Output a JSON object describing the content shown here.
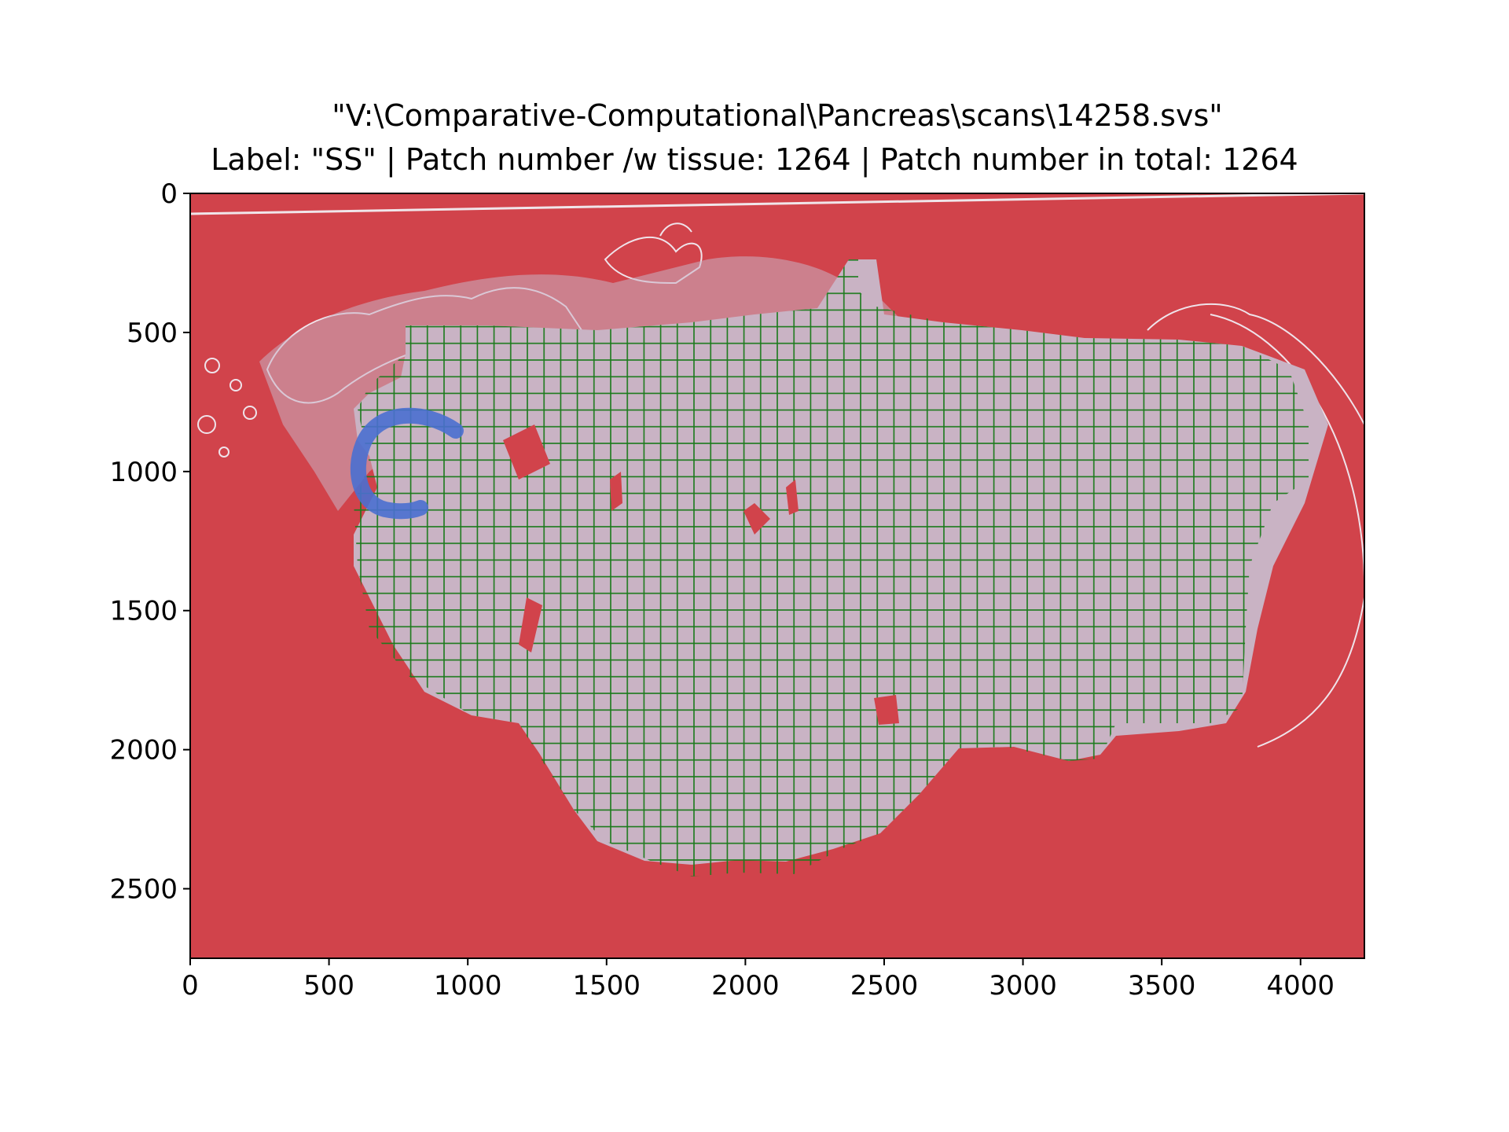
{
  "chart_data": {
    "type": "heatmap",
    "title_line1": "\"V:\\Comparative-Computational\\Pancreas\\scans\\14258.svs\"",
    "title_line2": "Label: \"SS\" | Patch number /w tissue: 1264 | Patch number in total: 1264",
    "xlim": [
      0,
      4230
    ],
    "ylim": [
      2750,
      0
    ],
    "x_ticks": [
      0,
      500,
      1000,
      1500,
      2000,
      2500,
      3000,
      3500,
      4000
    ],
    "y_ticks": [
      0,
      500,
      1000,
      1500,
      2000,
      2500
    ],
    "patch_size": 60,
    "patch_count_with_tissue": 1264,
    "patch_count_total": 1264,
    "colors": {
      "background": "#d1434b",
      "tissue": "#c9b3c4",
      "patch_grid": "#1a7a1a",
      "marker": "#4a6fd0"
    }
  }
}
